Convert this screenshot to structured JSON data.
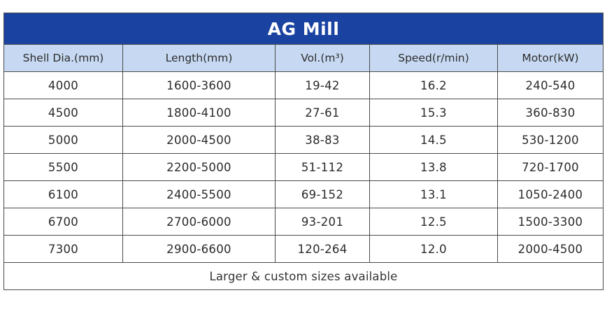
{
  "table": {
    "title": "AG Mill",
    "headers": [
      "Shell Dia.(mm)",
      "Length(mm)",
      "Vol.(m³)",
      "Speed(r/min)",
      "Motor(kW)"
    ],
    "rows": [
      [
        "4000",
        "1600-3600",
        "19-42",
        "16.2",
        "240-540"
      ],
      [
        "4500",
        "1800-4100",
        "27-61",
        "15.3",
        "360-830"
      ],
      [
        "5000",
        "2000-4500",
        "38-83",
        "14.5",
        "530-1200"
      ],
      [
        "5500",
        "2200-5000",
        "51-112",
        "13.8",
        "720-1700"
      ],
      [
        "6100",
        "2400-5500",
        "69-152",
        "13.1",
        "1050-2400"
      ],
      [
        "6700",
        "2700-6000",
        "93-201",
        "12.5",
        "1500-3300"
      ],
      [
        "7300",
        "2900-6600",
        "120-264",
        "12.0",
        "2000-4500"
      ]
    ],
    "footer": "Larger & custom sizes available",
    "colors": {
      "title_bg": "#1a43a1",
      "header_bg": "#c7d9f2",
      "border": "#4a4a4a"
    }
  }
}
